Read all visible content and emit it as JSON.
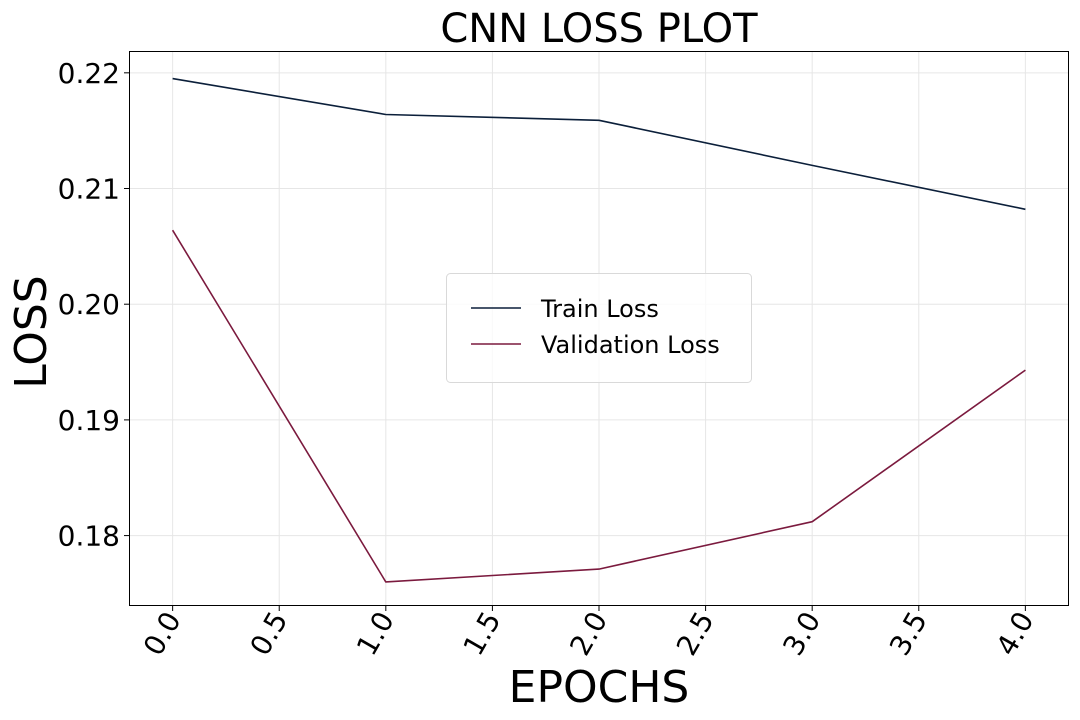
{
  "chart_data": {
    "type": "line",
    "title": "CNN LOSS PLOT",
    "xlabel": "EPOCHS",
    "ylabel": "LOSS",
    "xlim": [
      -0.2,
      4.2
    ],
    "ylim": [
      0.174,
      0.2218
    ],
    "xticks": [
      "0.0",
      "0.5",
      "1.0",
      "1.5",
      "2.0",
      "2.5",
      "3.0",
      "3.5",
      "4.0"
    ],
    "yticks": [
      "0.18",
      "0.19",
      "0.20",
      "0.21",
      "0.22"
    ],
    "x": [
      0,
      1,
      2,
      3,
      4
    ],
    "grid": true,
    "legend_position": "center",
    "series": [
      {
        "name": "Train Loss",
        "values": [
          0.2195,
          0.2164,
          0.2159,
          0.212,
          0.2082
        ],
        "color": "#0b1f3a"
      },
      {
        "name": "Validation Loss",
        "values": [
          0.2064,
          0.176,
          0.1771,
          0.1812,
          0.1943
        ],
        "color": "#7b1a3e"
      }
    ]
  }
}
